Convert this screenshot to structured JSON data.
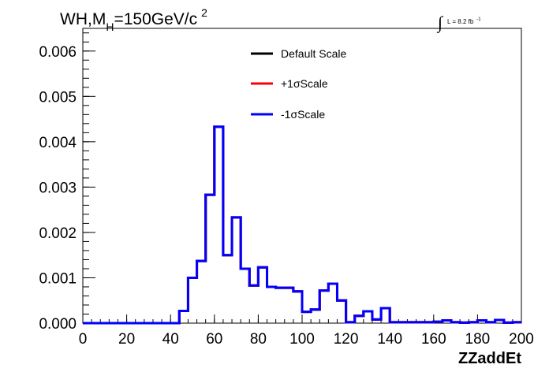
{
  "chart_data": {
    "type": "line",
    "title_main": "WH,M",
    "title_sub": "H",
    "title_rest": "=150GeV/c",
    "title_sup": "2",
    "lumi_int": "∫",
    "lumi_text": "L = 8.2 fb",
    "lumi_sup": "-1",
    "xlabel": "ZZaddEt",
    "ylabel": "",
    "xlim": [
      0,
      200
    ],
    "ylim": [
      0,
      0.0065
    ],
    "x_ticks": [
      "0",
      "20",
      "40",
      "60",
      "80",
      "100",
      "120",
      "140",
      "160",
      "180",
      "200"
    ],
    "y_ticks": [
      "0.000",
      "0.001",
      "0.002",
      "0.003",
      "0.004",
      "0.005",
      "0.006"
    ],
    "bin_width": 4,
    "series": [
      {
        "name": "Default Scale",
        "color": "#000000",
        "values": [
          0,
          0,
          0,
          0,
          0,
          0,
          0,
          0,
          0,
          0,
          0,
          0.00027,
          0.001,
          0.00137,
          0.00283,
          0.00433,
          0.0015,
          0.00233,
          0.0012,
          0.00083,
          0.00123,
          0.0008,
          0.00078,
          0.00078,
          0.0007,
          0.00025,
          0.0003,
          0.00072,
          0.00087,
          0.0005,
          2e-05,
          0.00016,
          0.00026,
          8e-05,
          0.00033,
          2e-05,
          2e-05,
          2e-05,
          2e-05,
          2e-05,
          3e-05,
          6e-05,
          2e-05,
          1e-05,
          2e-05,
          6e-05,
          2e-05,
          7e-05,
          1e-05,
          2e-05
        ]
      },
      {
        "name": "+1σScale",
        "color": "#ff0000",
        "values": [
          0,
          0,
          0,
          0,
          0,
          0,
          0,
          0,
          0,
          0,
          0,
          0.00027,
          0.001,
          0.00137,
          0.00283,
          0.00433,
          0.0015,
          0.00233,
          0.0012,
          0.00083,
          0.00123,
          0.0008,
          0.00078,
          0.00078,
          0.0007,
          0.00025,
          0.0003,
          0.00072,
          0.00087,
          0.0005,
          2e-05,
          0.00016,
          0.00026,
          8e-05,
          0.00033,
          2e-05,
          2e-05,
          2e-05,
          2e-05,
          2e-05,
          3e-05,
          6e-05,
          2e-05,
          1e-05,
          2e-05,
          6e-05,
          2e-05,
          7e-05,
          1e-05,
          2e-05
        ]
      },
      {
        "name": "-1σScale",
        "color": "#0000ff",
        "values": [
          0,
          0,
          0,
          0,
          0,
          0,
          0,
          0,
          0,
          0,
          0,
          0.00027,
          0.001,
          0.00137,
          0.00283,
          0.00433,
          0.0015,
          0.00233,
          0.0012,
          0.00083,
          0.00123,
          0.0008,
          0.00078,
          0.00078,
          0.0007,
          0.00025,
          0.0003,
          0.00072,
          0.00087,
          0.0005,
          2e-05,
          0.00016,
          0.00026,
          8e-05,
          0.00033,
          2e-05,
          2e-05,
          2e-05,
          2e-05,
          2e-05,
          3e-05,
          6e-05,
          2e-05,
          1e-05,
          2e-05,
          6e-05,
          2e-05,
          7e-05,
          1e-05,
          2e-05
        ]
      }
    ],
    "legend_position": "top-center",
    "grid": false
  }
}
